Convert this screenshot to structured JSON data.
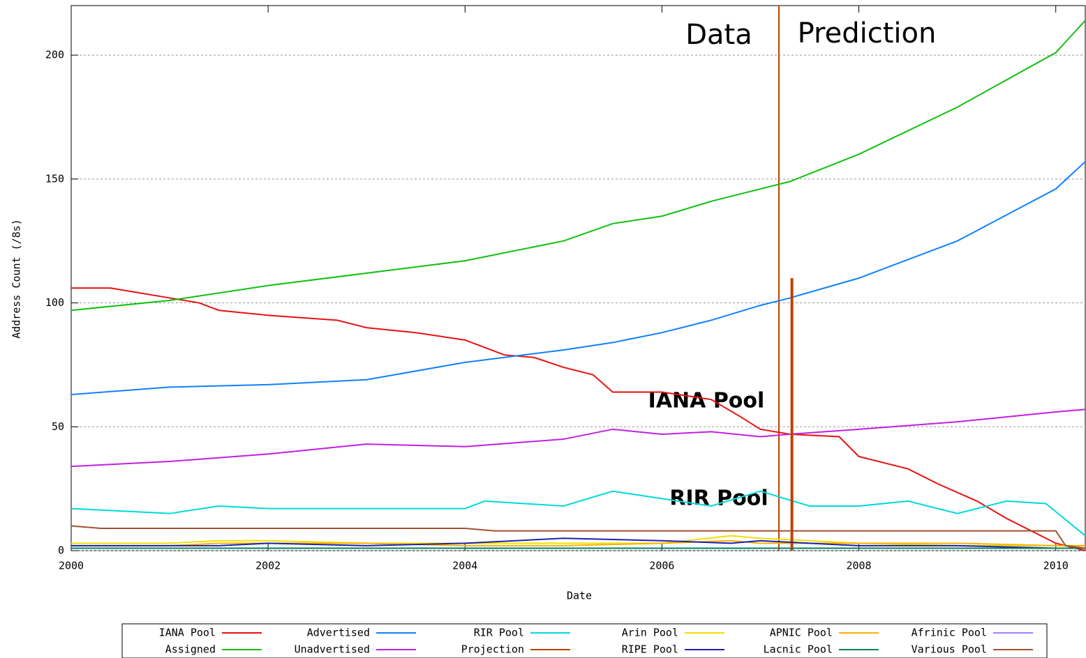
{
  "chart_data": {
    "type": "line",
    "x_label": "Date",
    "y_label": "Address Count (/8s)",
    "xlim": [
      2000,
      2010.3
    ],
    "xticks": [
      2000,
      2002,
      2004,
      2006,
      2008,
      2010
    ],
    "ylim": [
      0,
      220
    ],
    "yticks": [
      0,
      50,
      100,
      150,
      200
    ],
    "grid": true,
    "annotations": [
      "Data",
      "Prediction",
      "IANA Pool",
      "RIR Pool"
    ],
    "series": [
      {
        "name": "IANA Pool",
        "color": "#e81010",
        "x": [
          2000,
          2000.4,
          2001,
          2001.3,
          2001.5,
          2002,
          2002.7,
          2003,
          2003.5,
          2004,
          2004.4,
          2004.7,
          2005,
          2005.3,
          2005.5,
          2006,
          2006.5,
          2006.8,
          2007,
          2007.3,
          2007.8,
          2008,
          2008.5,
          2008.8,
          2009.2,
          2009.5,
          2010,
          2010.3
        ],
        "values": [
          106,
          106,
          102,
          100,
          97,
          95,
          93,
          90,
          88,
          85,
          79,
          78,
          74,
          71,
          64,
          64,
          61,
          54,
          49,
          47,
          46,
          38,
          33,
          27,
          20,
          13,
          3,
          0
        ]
      },
      {
        "name": "Advertised",
        "color": "#1080ff",
        "x": [
          2000,
          2001,
          2002,
          2003,
          2004,
          2005,
          2005.5,
          2006,
          2006.5,
          2007,
          2007.3,
          2008,
          2009,
          2010,
          2010.3
        ],
        "values": [
          63,
          66,
          67,
          69,
          76,
          81,
          84,
          88,
          93,
          99,
          102,
          110,
          125,
          146,
          157
        ]
      },
      {
        "name": "RIR Pool",
        "color": "#00dada",
        "x": [
          2000,
          2000.5,
          2001,
          2001.5,
          2002,
          2003,
          2004,
          2004.2,
          2005,
          2005.5,
          2006,
          2006.5,
          2007,
          2007.5,
          2008,
          2008.5,
          2009,
          2009.5,
          2009.9,
          2010.3
        ],
        "values": [
          17,
          16,
          15,
          18,
          17,
          17,
          17,
          20,
          18,
          24,
          21,
          18,
          24,
          18,
          18,
          20,
          15,
          20,
          19,
          6
        ]
      },
      {
        "name": "Arin Pool",
        "color": "#f0e000",
        "x": [
          2000,
          2001,
          2001.5,
          2002,
          2003,
          2004,
          2005,
          2006,
          2006.7,
          2007,
          2007.5,
          2008,
          2009,
          2010,
          2010.3
        ],
        "values": [
          3,
          3,
          4,
          4,
          3,
          3,
          3,
          3,
          6,
          5,
          4,
          3,
          2,
          2,
          2
        ]
      },
      {
        "name": "APNIC Pool",
        "color": "#ffb000",
        "x": [
          2000,
          2001,
          2001.5,
          2002,
          2003,
          2004,
          2005,
          2006,
          2006.7,
          2007,
          2007.5,
          2008,
          2009,
          2010,
          2010.3
        ],
        "values": [
          2,
          2,
          3,
          3,
          3,
          2,
          2,
          3,
          4,
          3,
          3,
          3,
          3,
          2,
          2
        ]
      },
      {
        "name": "Afrinic Pool",
        "color": "#a080ff",
        "x": [
          2000,
          2005,
          2010.3
        ],
        "values": [
          1,
          1,
          1
        ]
      },
      {
        "name": "Assigned",
        "color": "#10c010",
        "x": [
          2000,
          2001,
          2002,
          2003,
          2004,
          2005,
          2005.5,
          2006,
          2006.5,
          2007,
          2007.3,
          2008,
          2009,
          2010,
          2010.3
        ],
        "values": [
          97,
          101,
          107,
          112,
          117,
          125,
          132,
          135,
          141,
          146,
          149,
          160,
          179,
          201,
          214
        ]
      },
      {
        "name": "Unadvertised",
        "color": "#c020e0",
        "x": [
          2000,
          2001,
          2002,
          2003,
          2004,
          2005,
          2005.5,
          2006,
          2006.5,
          2007,
          2007.3,
          2008,
          2009,
          2010,
          2010.3
        ],
        "values": [
          34,
          36,
          39,
          43,
          42,
          45,
          49,
          47,
          48,
          46,
          47,
          49,
          52,
          56,
          57
        ]
      },
      {
        "name": "Projection",
        "color": "#c04000",
        "x": [
          2007.32,
          2007.32
        ],
        "values": [
          0,
          110
        ]
      },
      {
        "name": "RIPE Pool",
        "color": "#2020b0",
        "x": [
          2000,
          2001,
          2001.5,
          2002,
          2003,
          2004,
          2005,
          2006,
          2006.7,
          2007,
          2007.5,
          2008,
          2009,
          2010,
          2010.3
        ],
        "values": [
          2,
          2,
          2,
          3,
          2,
          3,
          5,
          4,
          3,
          4,
          3,
          2,
          2,
          1,
          1
        ]
      },
      {
        "name": "Lacnic Pool",
        "color": "#008060",
        "x": [
          2000,
          2005,
          2010.3
        ],
        "values": [
          1,
          1,
          1
        ]
      },
      {
        "name": "Various Pool",
        "color": "#a0522d",
        "x": [
          2000,
          2000.3,
          2004,
          2004.3,
          2010,
          2010.1,
          2010.3
        ],
        "values": [
          10,
          9,
          9,
          8,
          8,
          2,
          1
        ]
      }
    ]
  }
}
